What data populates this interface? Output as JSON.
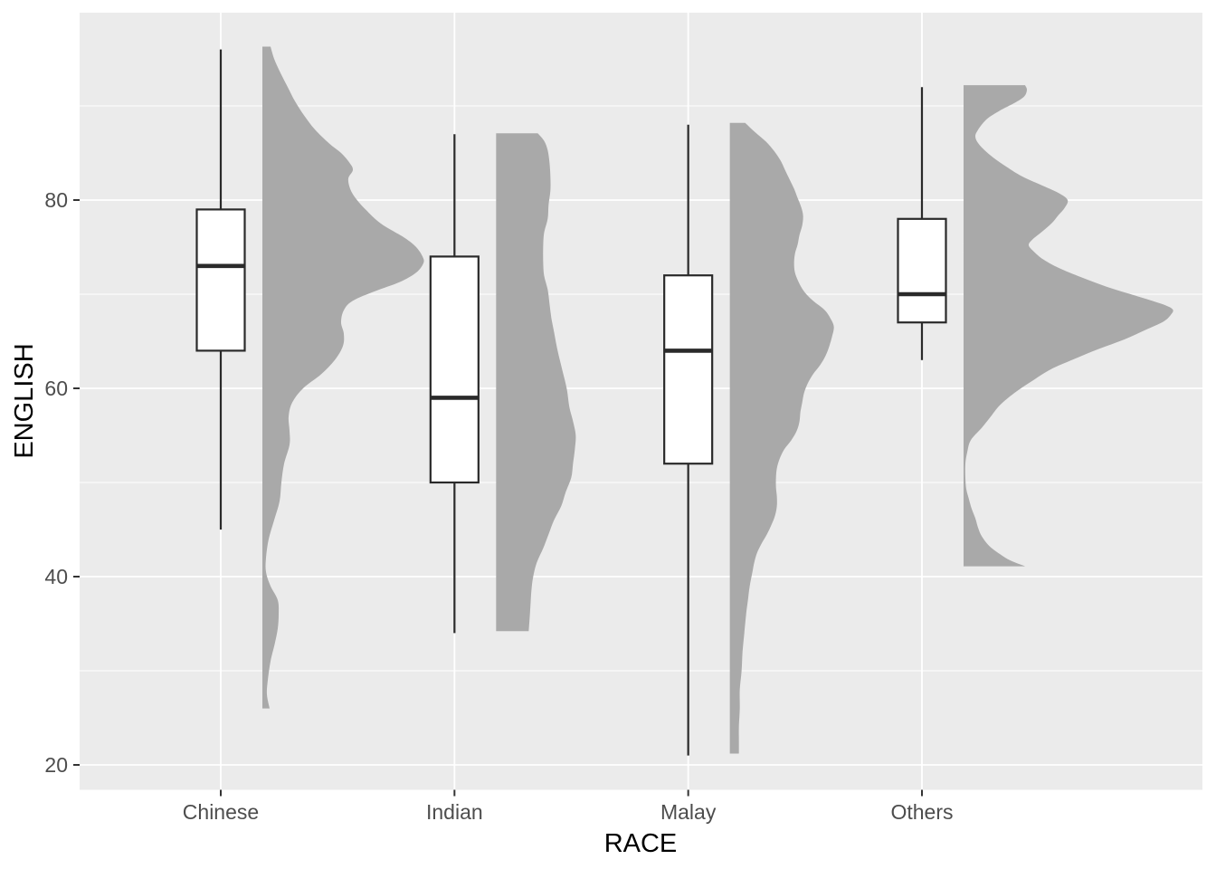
{
  "figure": {
    "description": "Raincloud plot: boxplot with right half-violin density of ENGLISH score by RACE"
  },
  "colors": {
    "page_bg": "#FFFFFF",
    "panel_bg": "#EBEBEB",
    "gridline": "#FFFFFF",
    "density_fill": "#A9A9A9",
    "box_fill": "#FFFFFF",
    "box_stroke": "#2A2A2A",
    "median_stroke": "#2A2A2A",
    "whisker_stroke": "#2A2A2A",
    "tick_mark": "#333333",
    "tick_label": "#4D4D4D",
    "axis_title": "#000000"
  },
  "chart_data": {
    "type": "raincloud (boxplot + right half-violin density per category)",
    "title": "",
    "xlabel": "RACE",
    "ylabel": "ENGLISH",
    "categories": [
      "Chinese",
      "Indian",
      "Malay",
      "Others"
    ],
    "y_ticks": [
      20,
      40,
      60,
      80
    ],
    "y_minor_gridlines": [
      30,
      50,
      70,
      90
    ],
    "ylim_shown": [
      17.4,
      99.9
    ],
    "grid": "white horizontal major+minor lines; white vertical major line at each category",
    "legend": "none",
    "series": [
      {
        "name": "Chinese",
        "box": {
          "whisker_low": 45,
          "q1": 64,
          "median": 73,
          "q3": 79,
          "whisker_high": 96
        },
        "density_range": [
          26,
          96.3
        ],
        "density_profile_value_halfwidthpx": [
          [
            96.3,
            9
          ],
          [
            95,
            13
          ],
          [
            93.5,
            20
          ],
          [
            92,
            28
          ],
          [
            90.5,
            36
          ],
          [
            89,
            46
          ],
          [
            87.5,
            58
          ],
          [
            86,
            74
          ],
          [
            85,
            87
          ],
          [
            84,
            96
          ],
          [
            83.2,
            100
          ],
          [
            82.3,
            95
          ],
          [
            81.2,
            97
          ],
          [
            80.2,
            103
          ],
          [
            79,
            114
          ],
          [
            77.5,
            131
          ],
          [
            76,
            157
          ],
          [
            75,
            170
          ],
          [
            74,
            177
          ],
          [
            73.3,
            178
          ],
          [
            72.3,
            170
          ],
          [
            71.3,
            152
          ],
          [
            70.3,
            124
          ],
          [
            69.3,
            100
          ],
          [
            68.3,
            90
          ],
          [
            67,
            87
          ],
          [
            65.8,
            90
          ],
          [
            64.5,
            89
          ],
          [
            63,
            80
          ],
          [
            61.5,
            65
          ],
          [
            60,
            45
          ],
          [
            58.5,
            33
          ],
          [
            57,
            29
          ],
          [
            55.5,
            30
          ],
          [
            54,
            30
          ],
          [
            52,
            24
          ],
          [
            50,
            21
          ],
          [
            48,
            19
          ],
          [
            46,
            13
          ],
          [
            44,
            7
          ],
          [
            42,
            4
          ],
          [
            40.5,
            4
          ],
          [
            39,
            9
          ],
          [
            37.5,
            17
          ],
          [
            36,
            18
          ],
          [
            34.5,
            17
          ],
          [
            33,
            14
          ],
          [
            31,
            9
          ],
          [
            29,
            6
          ],
          [
            27.5,
            5
          ],
          [
            26,
            8
          ]
        ]
      },
      {
        "name": "Indian",
        "box": {
          "whisker_low": 34,
          "q1": 50,
          "median": 59,
          "q3": 74,
          "whisker_high": 87
        },
        "density_range": [
          34.2,
          87.1
        ],
        "density_profile_value_halfwidthpx": [
          [
            87.1,
            46
          ],
          [
            86.3,
            53
          ],
          [
            85.3,
            57
          ],
          [
            84,
            59
          ],
          [
            82.5,
            60
          ],
          [
            81,
            60
          ],
          [
            79.5,
            58
          ],
          [
            78,
            57
          ],
          [
            76.5,
            53
          ],
          [
            75,
            52
          ],
          [
            73.5,
            52
          ],
          [
            72,
            53
          ],
          [
            70.5,
            57
          ],
          [
            69,
            59
          ],
          [
            67.5,
            61
          ],
          [
            66,
            64
          ],
          [
            64,
            68
          ],
          [
            62,
            73
          ],
          [
            60,
            78
          ],
          [
            58,
            81
          ],
          [
            56.5,
            85
          ],
          [
            55,
            88
          ],
          [
            53.5,
            87
          ],
          [
            52,
            85
          ],
          [
            50.5,
            83
          ],
          [
            49,
            77
          ],
          [
            47.5,
            72
          ],
          [
            46,
            64
          ],
          [
            44.5,
            58
          ],
          [
            43,
            52
          ],
          [
            41.5,
            45
          ],
          [
            40,
            41
          ],
          [
            38.5,
            39
          ],
          [
            37,
            38
          ],
          [
            35.5,
            37
          ],
          [
            34.2,
            36
          ]
        ]
      },
      {
        "name": "Malay",
        "box": {
          "whisker_low": 21,
          "q1": 52,
          "median": 64,
          "q3": 72,
          "whisker_high": 88
        },
        "density_range": [
          21.2,
          88.2
        ],
        "density_profile_value_halfwidthpx": [
          [
            88.2,
            17
          ],
          [
            87.2,
            28
          ],
          [
            86.2,
            40
          ],
          [
            85.2,
            49
          ],
          [
            84.2,
            56
          ],
          [
            83.2,
            61
          ],
          [
            82.2,
            66
          ],
          [
            81.2,
            71
          ],
          [
            80.2,
            75
          ],
          [
            79.2,
            79
          ],
          [
            78.3,
            81
          ],
          [
            77.3,
            80
          ],
          [
            76.3,
            77
          ],
          [
            75.3,
            75
          ],
          [
            74.3,
            72
          ],
          [
            73.3,
            71
          ],
          [
            72.3,
            72
          ],
          [
            71.3,
            76
          ],
          [
            70.3,
            82
          ],
          [
            69.3,
            92
          ],
          [
            68.3,
            105
          ],
          [
            67.3,
            112
          ],
          [
            66.5,
            115
          ],
          [
            65.5,
            113
          ],
          [
            64.5,
            110
          ],
          [
            63.5,
            106
          ],
          [
            62.5,
            100
          ],
          [
            61.5,
            92
          ],
          [
            60.5,
            86
          ],
          [
            59.5,
            82
          ],
          [
            58.5,
            80
          ],
          [
            57.5,
            78
          ],
          [
            56.5,
            77
          ],
          [
            55.5,
            74
          ],
          [
            54.5,
            68
          ],
          [
            53.5,
            60
          ],
          [
            52.5,
            55
          ],
          [
            51.5,
            52
          ],
          [
            50.5,
            51
          ],
          [
            49.5,
            51
          ],
          [
            48.5,
            52
          ],
          [
            47.5,
            52
          ],
          [
            46.5,
            50
          ],
          [
            45.5,
            46
          ],
          [
            44.5,
            41
          ],
          [
            43.5,
            35
          ],
          [
            42.5,
            30
          ],
          [
            41.5,
            27
          ],
          [
            40.5,
            25
          ],
          [
            39,
            22
          ],
          [
            37.5,
            20
          ],
          [
            36,
            18
          ],
          [
            34,
            16
          ],
          [
            32,
            14
          ],
          [
            30,
            13
          ],
          [
            28,
            11
          ],
          [
            26,
            11
          ],
          [
            24,
            10
          ],
          [
            22.5,
            10
          ],
          [
            21.2,
            10
          ]
        ]
      },
      {
        "name": "Others",
        "box": {
          "whisker_low": 63,
          "q1": 67,
          "median": 70,
          "q3": 78,
          "whisker_high": 92
        },
        "density_range": [
          41.1,
          92.2
        ],
        "density_profile_value_halfwidthpx": [
          [
            92.2,
            68
          ],
          [
            91.7,
            70
          ],
          [
            91,
            67
          ],
          [
            90.3,
            56
          ],
          [
            89.5,
            40
          ],
          [
            88.7,
            27
          ],
          [
            88,
            20
          ],
          [
            87.3,
            15
          ],
          [
            86.8,
            13
          ],
          [
            86.2,
            15
          ],
          [
            85.4,
            22
          ],
          [
            84.5,
            33
          ],
          [
            83.5,
            48
          ],
          [
            82.5,
            65
          ],
          [
            81.5,
            88
          ],
          [
            80.7,
            106
          ],
          [
            80,
            115
          ],
          [
            79.2,
            112
          ],
          [
            78.3,
            104
          ],
          [
            77.5,
            97
          ],
          [
            76.5,
            85
          ],
          [
            75.8,
            76
          ],
          [
            75.2,
            72
          ],
          [
            74.5,
            78
          ],
          [
            73.7,
            88
          ],
          [
            72.8,
            105
          ],
          [
            71.8,
            130
          ],
          [
            70.8,
            158
          ],
          [
            69.9,
            188
          ],
          [
            69,
            218
          ],
          [
            68.4,
            231
          ],
          [
            67.8,
            229
          ],
          [
            67.1,
            221
          ],
          [
            66.2,
            201
          ],
          [
            65.2,
            178
          ],
          [
            64.2,
            150
          ],
          [
            63.1,
            122
          ],
          [
            62,
            96
          ],
          [
            60.8,
            76
          ],
          [
            59.5,
            56
          ],
          [
            58.2,
            40
          ],
          [
            57,
            30
          ],
          [
            55.8,
            20
          ],
          [
            54.5,
            8
          ],
          [
            53.2,
            4
          ],
          [
            52,
            2
          ],
          [
            50.5,
            2
          ],
          [
            49.3,
            3
          ],
          [
            48.2,
            6
          ],
          [
            47.2,
            9
          ],
          [
            46.2,
            13
          ],
          [
            45.2,
            16
          ],
          [
            44.3,
            20
          ],
          [
            43.3,
            28
          ],
          [
            42.4,
            40
          ],
          [
            41.7,
            52
          ],
          [
            41.1,
            68
          ]
        ]
      }
    ]
  }
}
